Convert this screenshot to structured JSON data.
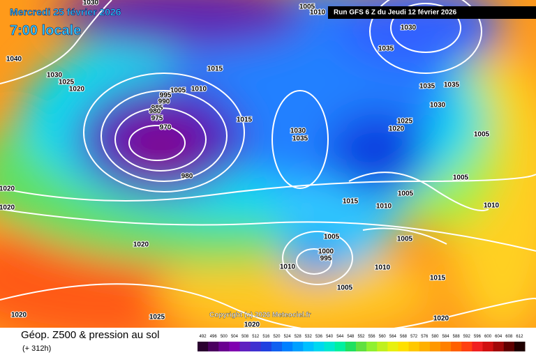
{
  "header": {
    "date": "Mercredi 25 février 2026",
    "time": "7:00 locale",
    "run": "Run GFS 6 Z du Jeudi 12 février 2026"
  },
  "copyright": "Copyright (c) 2026 Meteociel.fr",
  "footer": {
    "title": "Géop. Z500 & pression au sol",
    "lead": "(+ 312h)"
  },
  "isobars": {
    "labels": [
      1030,
      1005,
      1010,
      1030,
      1035,
      1040,
      1030,
      1025,
      1020,
      1015,
      1005,
      1010,
      995,
      990,
      985,
      980,
      975,
      970,
      1015,
      1030,
      1035,
      980,
      1035,
      1035,
      1030,
      1025,
      1020,
      1005,
      1005,
      1005,
      1015,
      1010,
      1010,
      1020,
      1020,
      1020,
      1005,
      1005,
      1000,
      995,
      1010,
      1010,
      1015,
      1005,
      1020,
      1025,
      1020,
      1020
    ]
  },
  "legend": {
    "levels": [
      492,
      496,
      500,
      504,
      508,
      512,
      516,
      520,
      524,
      528,
      532,
      536,
      540,
      544,
      548,
      552,
      556,
      560,
      564,
      568,
      572,
      576,
      580,
      584,
      588,
      592,
      596,
      600,
      604,
      608,
      612
    ]
  }
}
